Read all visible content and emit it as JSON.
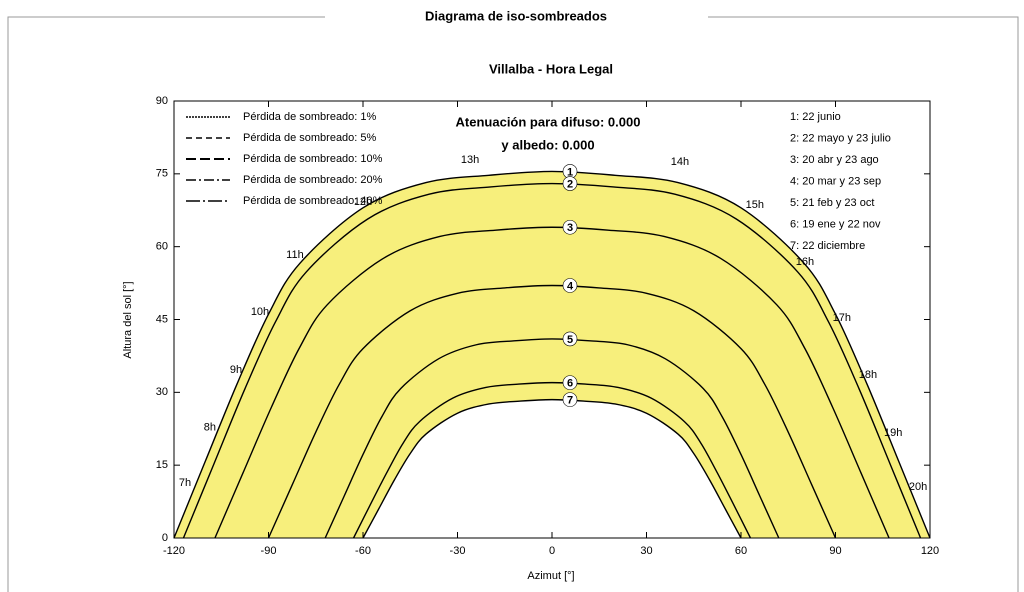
{
  "header": {
    "title": "Diagrama de iso-sombreados"
  },
  "chart_data": {
    "type": "line",
    "title": "Villalba - Hora Legal",
    "xlabel": "Azimut [°]",
    "ylabel": "Altura del sol [°]",
    "xlim": [
      -120,
      120
    ],
    "ylim": [
      0,
      90
    ],
    "xticks": [
      -120,
      -90,
      -60,
      -30,
      0,
      30,
      60,
      90,
      120
    ],
    "yticks": [
      0,
      15,
      30,
      45,
      60,
      75,
      90
    ],
    "band_color": "#f7ef7c",
    "loss_legend": [
      "Pérdida de sombreado: 1%",
      "Pérdida de sombreado: 5%",
      "Pérdida de sombreado: 10%",
      "Pérdida de sombreado: 20%",
      "Pérdida de sombreado: 40%"
    ],
    "annotations": [
      "Atenuación para difuso: 0.000",
      "y albedo: 0.000"
    ],
    "series": [
      {
        "name": "1: 22 junio",
        "marker": "1",
        "color": "#000000",
        "x": [
          -120,
          -110,
          -100,
          -90,
          -80,
          -60,
          -40,
          -20,
          0,
          20,
          40,
          60,
          80,
          90,
          100,
          110,
          120
        ],
        "values": [
          0,
          15.9,
          31.7,
          46.1,
          56.6,
          68,
          73.2,
          74.7,
          75.5,
          74.7,
          73.2,
          68,
          56.6,
          46.1,
          31.7,
          15.9,
          0
        ]
      },
      {
        "name": "2: 22 mayo y 23 julio",
        "marker": "2",
        "color": "#000000",
        "x": [
          -117,
          -107.3,
          -97.5,
          -87.8,
          -78,
          -58.5,
          -39,
          -19.5,
          0,
          19.5,
          39,
          58.5,
          78,
          87.8,
          97.5,
          107.3,
          117
        ],
        "values": [
          0,
          15.3,
          30.7,
          44.5,
          54.8,
          65.7,
          70.8,
          72.3,
          73,
          72.3,
          70.8,
          65.7,
          54.8,
          44.5,
          30.7,
          15.3,
          0
        ]
      },
      {
        "name": "3: 20 abr y 23 ago",
        "marker": "3",
        "color": "#000000",
        "x": [
          -107,
          -98.1,
          -89.1,
          -80.3,
          -71.4,
          -53.5,
          -35.6,
          -17.9,
          0,
          17.9,
          35.6,
          53.5,
          71.4,
          80.3,
          89.1,
          98.1,
          107
        ],
        "values": [
          0,
          13.4,
          26.9,
          39,
          48,
          57.6,
          62.1,
          63.4,
          64,
          63.4,
          62.1,
          57.6,
          48,
          39,
          26.9,
          13.4,
          0
        ]
      },
      {
        "name": "4: 20 mar y 23 sep",
        "marker": "4",
        "color": "#000000",
        "x": [
          -90,
          -82.5,
          -75,
          -67.5,
          -60,
          -45,
          -30,
          -15,
          0,
          15,
          30,
          45,
          60,
          67.5,
          75,
          82.5,
          90
        ],
        "values": [
          0,
          10.9,
          21.8,
          31.7,
          39,
          46.8,
          50.4,
          51.5,
          52,
          51.5,
          50.4,
          46.8,
          39,
          31.7,
          21.8,
          10.9,
          0
        ]
      },
      {
        "name": "5: 21 feb y 23 oct",
        "marker": "5",
        "color": "#000000",
        "x": [
          -72,
          -66,
          -60,
          -54,
          -48,
          -36,
          -24,
          -12,
          0,
          12,
          24,
          36,
          48,
          54,
          60,
          66,
          72
        ],
        "values": [
          0,
          8.6,
          17.2,
          25,
          30.8,
          36.9,
          39.8,
          40.6,
          41,
          40.6,
          39.8,
          36.9,
          30.8,
          25,
          17.2,
          8.6,
          0
        ]
      },
      {
        "name": "6: 19 ene y 22 nov",
        "marker": "6",
        "color": "#000000",
        "x": [
          -63,
          -57.8,
          -52.5,
          -47.3,
          -42,
          -31.5,
          -21,
          -10.5,
          0,
          10.5,
          21,
          31.5,
          42,
          47.3,
          52.5,
          57.8,
          63
        ],
        "values": [
          0,
          6.7,
          13.4,
          19.5,
          24,
          28.8,
          31,
          31.7,
          32,
          31.7,
          31,
          28.8,
          24,
          19.5,
          13.4,
          6.7,
          0
        ]
      },
      {
        "name": "7: 22 diciembre",
        "marker": "7",
        "color": "#000000",
        "x": [
          -60,
          -55,
          -50,
          -45,
          -40,
          -30,
          -20,
          -10,
          0,
          10,
          20,
          30,
          40,
          45,
          50,
          55,
          60
        ],
        "values": [
          0,
          6,
          12,
          17.4,
          21.4,
          25.7,
          27.6,
          28.2,
          28.5,
          28.2,
          27.6,
          25.7,
          21.4,
          17.4,
          12,
          6,
          0
        ]
      }
    ],
    "hour_labels": [
      {
        "label": "7h",
        "x": -116.5,
        "y": 11.3
      },
      {
        "label": "8h",
        "x": -108.6,
        "y": 22.7
      },
      {
        "label": "9h",
        "x": -100.3,
        "y": 34.6
      },
      {
        "label": "10h",
        "x": -92.7,
        "y": 46.5
      },
      {
        "label": "11h",
        "x": -81.6,
        "y": 58.3
      },
      {
        "label": "12h",
        "x": -60,
        "y": 69.2
      },
      {
        "label": "13h",
        "x": -26,
        "y": 77.8
      },
      {
        "label": "14h",
        "x": 40.6,
        "y": 77.4
      },
      {
        "label": "15h",
        "x": 64.4,
        "y": 68.6
      },
      {
        "label": "16h",
        "x": 80.3,
        "y": 56.8
      },
      {
        "label": "17h",
        "x": 92,
        "y": 45.3
      },
      {
        "label": "18h",
        "x": 100.3,
        "y": 33.6
      },
      {
        "label": "19h",
        "x": 108.3,
        "y": 21.6
      },
      {
        "label": "20h",
        "x": 116.2,
        "y": 10.5
      }
    ]
  }
}
